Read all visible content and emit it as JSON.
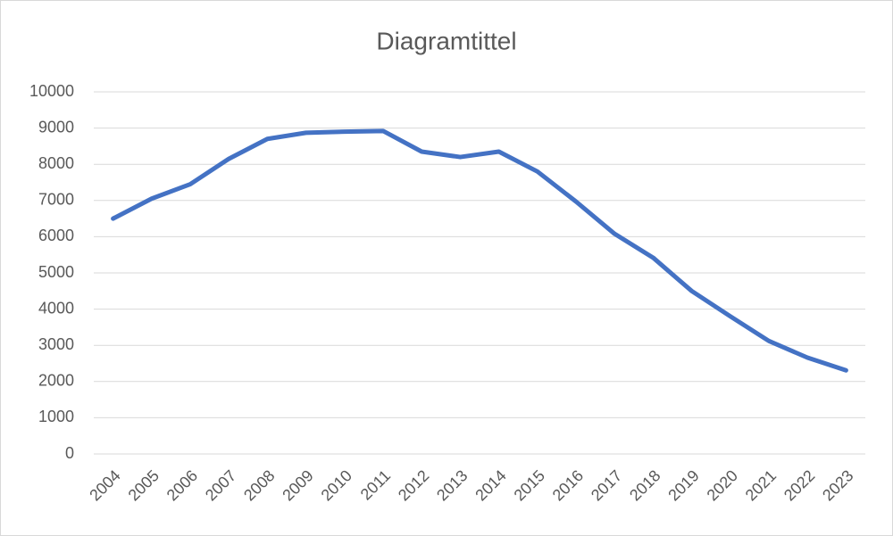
{
  "chart_data": {
    "type": "line",
    "title": "Diagramtittel",
    "categories": [
      "2004",
      "2005",
      "2006",
      "2007",
      "2008",
      "2009",
      "2010",
      "2011",
      "2012",
      "2013",
      "2014",
      "2015",
      "2016",
      "2017",
      "2018",
      "2019",
      "2020",
      "2021",
      "2022",
      "2023"
    ],
    "values": [
      6500,
      7050,
      7450,
      8150,
      8700,
      8870,
      8900,
      8920,
      8350,
      8200,
      8350,
      7800,
      6970,
      6080,
      5420,
      4500,
      3800,
      3120,
      2660,
      2310
    ],
    "color": "#4472c4",
    "ylim": [
      0,
      10000
    ],
    "yticks": [
      0,
      1000,
      2000,
      3000,
      4000,
      5000,
      6000,
      7000,
      8000,
      9000,
      10000
    ],
    "grid": true
  }
}
